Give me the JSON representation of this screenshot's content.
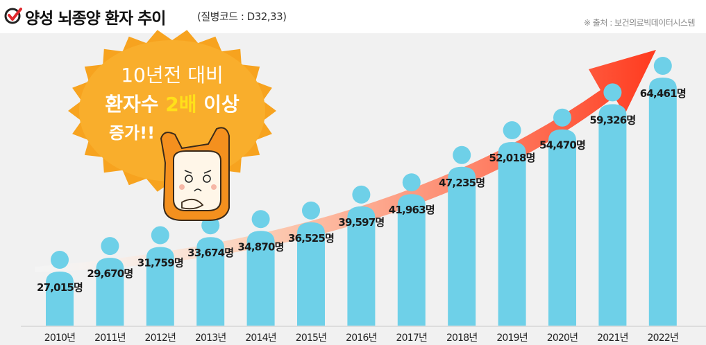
{
  "header": {
    "title": "양성 뇌종양 환자 추이",
    "subtitle": "(질병코드 : D32,33)",
    "source": "※ 출처 : 보건의료빅데이터시스템"
  },
  "callout": {
    "line1": "10년전 대비",
    "line2_prefix": "환자수",
    "line2_highlight": "2배",
    "line2_suffix": "이상",
    "line3": "증가!!"
  },
  "colors": {
    "bar": "#6ed0e8",
    "arrow": "#ff4422",
    "burst": "#f7a31f",
    "highlight": "#ffe01a",
    "background": "#f1f1f1"
  },
  "chart_data": {
    "type": "bar",
    "unit": "명",
    "categories": [
      "2010년",
      "2011년",
      "2012년",
      "2013년",
      "2014년",
      "2015년",
      "2016년",
      "2017년",
      "2018년",
      "2019년",
      "2020년",
      "2021년",
      "2022년"
    ],
    "values": [
      27015,
      29670,
      31759,
      33674,
      34870,
      36525,
      39597,
      41963,
      47235,
      52018,
      54470,
      59326,
      64461
    ],
    "data_labels": [
      "27,015명",
      "29,670명",
      "31,759명",
      "33,674명",
      "34,870명",
      "36,525명",
      "39,597명",
      "41,963명",
      "47,235명",
      "52,018명",
      "54,470명",
      "59,326명",
      "64,461명"
    ],
    "title": "양성 뇌종양 환자 추이",
    "xlabel": "",
    "ylabel": "",
    "grid": false,
    "legend": "none"
  }
}
